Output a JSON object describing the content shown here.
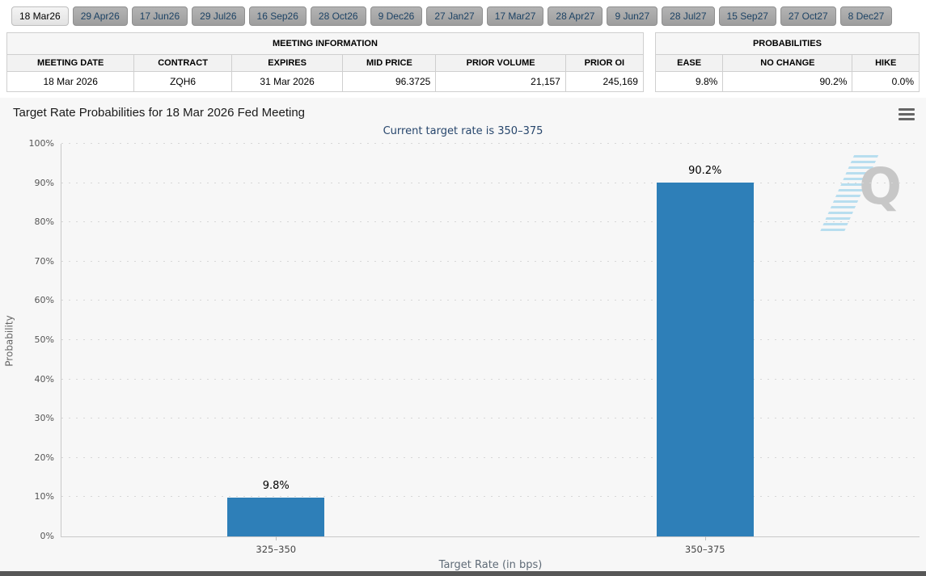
{
  "tabs": [
    {
      "label": "18 Mar26",
      "active": true
    },
    {
      "label": "29 Apr26",
      "active": false
    },
    {
      "label": "17 Jun26",
      "active": false
    },
    {
      "label": "29 Jul26",
      "active": false
    },
    {
      "label": "16 Sep26",
      "active": false
    },
    {
      "label": "28 Oct26",
      "active": false
    },
    {
      "label": "9 Dec26",
      "active": false
    },
    {
      "label": "27 Jan27",
      "active": false
    },
    {
      "label": "17 Mar27",
      "active": false
    },
    {
      "label": "28 Apr27",
      "active": false
    },
    {
      "label": "9 Jun27",
      "active": false
    },
    {
      "label": "28 Jul27",
      "active": false
    },
    {
      "label": "15 Sep27",
      "active": false
    },
    {
      "label": "27 Oct27",
      "active": false
    },
    {
      "label": "8 Dec27",
      "active": false
    }
  ],
  "meeting_info": {
    "title": "MEETING INFORMATION",
    "columns": [
      "MEETING DATE",
      "CONTRACT",
      "EXPIRES",
      "MID PRICE",
      "PRIOR VOLUME",
      "PRIOR OI"
    ],
    "values": [
      "18 Mar 2026",
      "ZQH6",
      "31 Mar 2026",
      "96.3725",
      "21,157",
      "245,169"
    ]
  },
  "probabilities": {
    "title": "PROBABILITIES",
    "columns": [
      "EASE",
      "NO CHANGE",
      "HIKE"
    ],
    "values": [
      "9.8%",
      "90.2%",
      "0.0%"
    ]
  },
  "chart": {
    "title": "Target Rate Probabilities for 18 Mar 2026 Fed Meeting",
    "subtitle": "Current target rate is 350–375",
    "menu_icon": "hamburger-menu-icon",
    "watermark_letter": "Q"
  },
  "chart_data": {
    "type": "bar",
    "categories": [
      "325–350",
      "350–375"
    ],
    "values": [
      9.8,
      90.2
    ],
    "value_labels": [
      "9.8%",
      "90.2%"
    ],
    "title": "Target Rate Probabilities for 18 Mar 2026 Fed Meeting",
    "subtitle": "Current target rate is 350–375",
    "xlabel": "Target Rate (in bps)",
    "ylabel": "Probability",
    "ylim": [
      0,
      100
    ],
    "ytick_step": 10,
    "ytick_suffix": "%",
    "bar_color": "#2e7fb8",
    "grid": "dotted-horizontal",
    "legend": "none"
  },
  "colors": {
    "bar": "#2e7fb8",
    "subtitle_text": "#27466c",
    "tab_text": "#1d4365",
    "chart_background": "#f7f7f7",
    "footer_strip": "#575757"
  }
}
